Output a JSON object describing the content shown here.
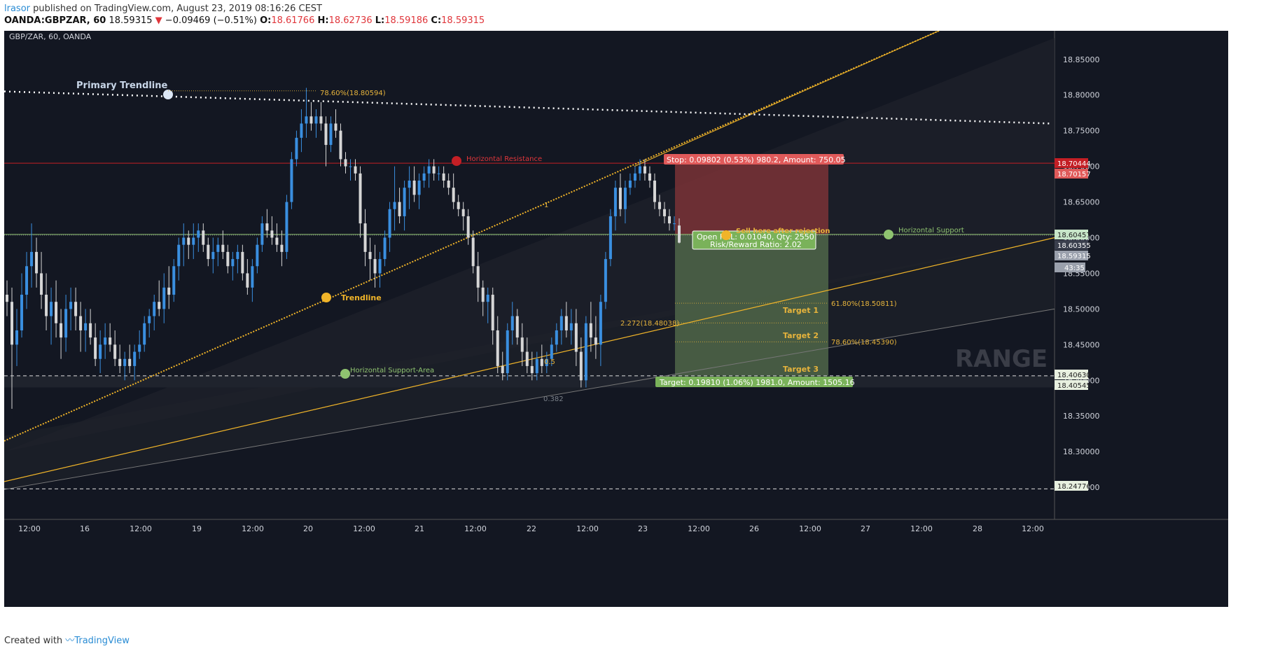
{
  "header": {
    "author": "lrasor",
    "published_text": "published on TradingView.com, August 23, 2019 08:16:26 CEST",
    "symbol": "OANDA:GBPZAR, 60",
    "last": "18.59315",
    "change": "−0.09469 (−0.51%)",
    "o_label": "O:",
    "o_val": "18.61766",
    "h_label": "H:",
    "h_val": "18.62736",
    "l_label": "L:",
    "l_val": "18.59186",
    "c_label": "C:",
    "c_val": "18.59315"
  },
  "footer": {
    "created_with": "Created with",
    "brand": "TradingView"
  },
  "chart_data": {
    "type": "candlestick",
    "title": "GBP/ZAR, 60, OANDA",
    "watermark": "RANGE",
    "ylim": [
      18.205,
      18.89
    ],
    "x_ticks": [
      "12:00",
      "16",
      "12:00",
      "19",
      "12:00",
      "20",
      "12:00",
      "21",
      "12:00",
      "22",
      "12:00",
      "23",
      "12:00",
      "26",
      "12:00",
      "27",
      "12:00",
      "28",
      "12:00"
    ],
    "y_ticks": [
      "18.85000",
      "18.80000",
      "18.75000",
      "18.70000",
      "18.65000",
      "18.60000",
      "18.55000",
      "18.50000",
      "18.45000",
      "18.40000",
      "18.35000",
      "18.30000",
      "18.25000"
    ],
    "price_badges": [
      {
        "value": "18.70444",
        "color": "#c41f25"
      },
      {
        "value": "18.70157",
        "color": "#e05a5a"
      },
      {
        "value": "18.60457",
        "color": "#c8e6c9"
      },
      {
        "value": "18.60355",
        "color": "#3a3f4d"
      },
      {
        "value": "18.59315",
        "color": "#9aa0ac"
      },
      {
        "value": "43:35",
        "color": "#9aa0ac"
      },
      {
        "value": "18.40630",
        "color": "#e8f0e0"
      },
      {
        "value": "18.40545",
        "color": "#e8f0e0"
      },
      {
        "value": "18.24776",
        "color": "#e8f0e0"
      }
    ],
    "candles": [
      [
        18.52,
        18.54,
        18.49,
        18.51
      ],
      [
        18.51,
        18.53,
        18.36,
        18.45
      ],
      [
        18.45,
        18.5,
        18.42,
        18.47
      ],
      [
        18.47,
        18.55,
        18.46,
        18.52
      ],
      [
        18.52,
        18.58,
        18.5,
        18.56
      ],
      [
        18.56,
        18.62,
        18.53,
        18.58
      ],
      [
        18.58,
        18.6,
        18.53,
        18.55
      ],
      [
        18.55,
        18.58,
        18.5,
        18.52
      ],
      [
        18.52,
        18.55,
        18.47,
        18.49
      ],
      [
        18.49,
        18.53,
        18.45,
        18.51
      ],
      [
        18.51,
        18.54,
        18.46,
        18.48
      ],
      [
        18.48,
        18.5,
        18.43,
        18.46
      ],
      [
        18.46,
        18.52,
        18.44,
        18.5
      ],
      [
        18.5,
        18.53,
        18.47,
        18.51
      ],
      [
        18.51,
        18.53,
        18.47,
        18.49
      ],
      [
        18.49,
        18.51,
        18.44,
        18.47
      ],
      [
        18.47,
        18.5,
        18.44,
        18.48
      ],
      [
        18.48,
        18.5,
        18.45,
        18.46
      ],
      [
        18.46,
        18.48,
        18.42,
        18.43
      ],
      [
        18.43,
        18.47,
        18.41,
        18.45
      ],
      [
        18.45,
        18.48,
        18.43,
        18.46
      ],
      [
        18.46,
        18.48,
        18.44,
        18.45
      ],
      [
        18.45,
        18.47,
        18.42,
        18.43
      ],
      [
        18.43,
        18.45,
        18.41,
        18.42
      ],
      [
        18.42,
        18.44,
        18.4,
        18.43
      ],
      [
        18.43,
        18.45,
        18.41,
        18.42
      ],
      [
        18.42,
        18.45,
        18.4,
        18.44
      ],
      [
        18.44,
        18.47,
        18.43,
        18.45
      ],
      [
        18.45,
        18.49,
        18.44,
        18.48
      ],
      [
        18.48,
        18.5,
        18.46,
        18.49
      ],
      [
        18.49,
        18.52,
        18.47,
        18.51
      ],
      [
        18.51,
        18.54,
        18.49,
        18.5
      ],
      [
        18.5,
        18.55,
        18.48,
        18.53
      ],
      [
        18.53,
        18.56,
        18.5,
        18.52
      ],
      [
        18.52,
        18.57,
        18.51,
        18.56
      ],
      [
        18.56,
        18.6,
        18.54,
        18.59
      ],
      [
        18.59,
        18.62,
        18.56,
        18.6
      ],
      [
        18.6,
        18.61,
        18.57,
        18.59
      ],
      [
        18.59,
        18.62,
        18.57,
        18.6
      ],
      [
        18.6,
        18.62,
        18.58,
        18.61
      ],
      [
        18.61,
        18.62,
        18.58,
        18.59
      ],
      [
        18.59,
        18.6,
        18.56,
        18.57
      ],
      [
        18.57,
        18.6,
        18.55,
        18.58
      ],
      [
        18.58,
        18.6,
        18.56,
        18.59
      ],
      [
        18.59,
        18.61,
        18.57,
        18.58
      ],
      [
        18.58,
        18.59,
        18.55,
        18.56
      ],
      [
        18.56,
        18.58,
        18.54,
        18.57
      ],
      [
        18.57,
        18.59,
        18.55,
        18.58
      ],
      [
        18.58,
        18.59,
        18.54,
        18.55
      ],
      [
        18.55,
        18.57,
        18.52,
        18.53
      ],
      [
        18.53,
        18.57,
        18.51,
        18.56
      ],
      [
        18.56,
        18.6,
        18.55,
        18.59
      ],
      [
        18.59,
        18.63,
        18.58,
        18.62
      ],
      [
        18.62,
        18.64,
        18.6,
        18.61
      ],
      [
        18.61,
        18.63,
        18.59,
        18.6
      ],
      [
        18.6,
        18.62,
        18.58,
        18.59
      ],
      [
        18.59,
        18.61,
        18.56,
        18.58
      ],
      [
        18.58,
        18.66,
        18.57,
        18.65
      ],
      [
        18.65,
        18.72,
        18.64,
        18.71
      ],
      [
        18.71,
        18.75,
        18.7,
        18.74
      ],
      [
        18.74,
        18.78,
        18.72,
        18.76
      ],
      [
        18.76,
        18.81,
        18.74,
        18.77
      ],
      [
        18.77,
        18.79,
        18.75,
        18.76
      ],
      [
        18.76,
        18.78,
        18.74,
        18.77
      ],
      [
        18.77,
        18.79,
        18.75,
        18.76
      ],
      [
        18.76,
        18.77,
        18.7,
        18.73
      ],
      [
        18.73,
        18.77,
        18.72,
        18.76
      ],
      [
        18.76,
        18.78,
        18.74,
        18.75
      ],
      [
        18.75,
        18.76,
        18.7,
        18.71
      ],
      [
        18.71,
        18.72,
        18.69,
        18.7
      ],
      [
        18.7,
        18.71,
        18.68,
        18.7
      ],
      [
        18.7,
        18.71,
        18.68,
        18.69
      ],
      [
        18.69,
        18.7,
        18.6,
        18.62
      ],
      [
        18.62,
        18.64,
        18.56,
        18.58
      ],
      [
        18.58,
        18.6,
        18.54,
        18.57
      ],
      [
        18.57,
        18.59,
        18.53,
        18.55
      ],
      [
        18.55,
        18.58,
        18.53,
        18.57
      ],
      [
        18.57,
        18.61,
        18.56,
        18.6
      ],
      [
        18.6,
        18.65,
        18.58,
        18.64
      ],
      [
        18.64,
        18.7,
        18.61,
        18.65
      ],
      [
        18.65,
        18.67,
        18.62,
        18.63
      ],
      [
        18.63,
        18.68,
        18.61,
        18.67
      ],
      [
        18.67,
        18.7,
        18.64,
        18.68
      ],
      [
        18.68,
        18.7,
        18.65,
        18.66
      ],
      [
        18.66,
        18.69,
        18.64,
        18.68
      ],
      [
        18.68,
        18.7,
        18.67,
        18.69
      ],
      [
        18.69,
        18.71,
        18.67,
        18.7
      ],
      [
        18.7,
        18.71,
        18.68,
        18.69
      ],
      [
        18.69,
        18.7,
        18.68,
        18.69
      ],
      [
        18.69,
        18.7,
        18.67,
        18.68
      ],
      [
        18.68,
        18.69,
        18.66,
        18.67
      ],
      [
        18.67,
        18.69,
        18.64,
        18.65
      ],
      [
        18.65,
        18.66,
        18.63,
        18.64
      ],
      [
        18.64,
        18.65,
        18.61,
        18.63
      ],
      [
        18.63,
        18.64,
        18.59,
        18.6
      ],
      [
        18.6,
        18.61,
        18.55,
        18.56
      ],
      [
        18.56,
        18.58,
        18.51,
        18.53
      ],
      [
        18.53,
        18.54,
        18.49,
        18.51
      ],
      [
        18.51,
        18.53,
        18.48,
        18.52
      ],
      [
        18.52,
        18.53,
        18.45,
        18.47
      ],
      [
        18.47,
        18.49,
        18.41,
        18.42
      ],
      [
        18.42,
        18.44,
        18.4,
        18.41
      ],
      [
        18.41,
        18.48,
        18.4,
        18.47
      ],
      [
        18.47,
        18.51,
        18.45,
        18.49
      ],
      [
        18.49,
        18.5,
        18.45,
        18.46
      ],
      [
        18.46,
        18.48,
        18.42,
        18.44
      ],
      [
        18.44,
        18.46,
        18.41,
        18.42
      ],
      [
        18.42,
        18.44,
        18.4,
        18.41
      ],
      [
        18.41,
        18.44,
        18.4,
        18.43
      ],
      [
        18.43,
        18.45,
        18.41,
        18.42
      ],
      [
        18.42,
        18.44,
        18.41,
        18.43
      ],
      [
        18.43,
        18.46,
        18.42,
        18.45
      ],
      [
        18.45,
        18.48,
        18.44,
        18.47
      ],
      [
        18.47,
        18.5,
        18.45,
        18.49
      ],
      [
        18.49,
        18.51,
        18.46,
        18.47
      ],
      [
        18.47,
        18.5,
        18.45,
        18.48
      ],
      [
        18.48,
        18.5,
        18.42,
        18.44
      ],
      [
        18.44,
        18.46,
        18.39,
        18.4
      ],
      [
        18.4,
        18.49,
        18.39,
        18.48
      ],
      [
        18.48,
        18.51,
        18.44,
        18.46
      ],
      [
        18.46,
        18.49,
        18.43,
        18.45
      ],
      [
        18.45,
        18.52,
        18.42,
        18.51
      ],
      [
        18.51,
        18.58,
        18.5,
        18.57
      ],
      [
        18.57,
        18.64,
        18.56,
        18.63
      ],
      [
        18.63,
        18.68,
        18.61,
        18.67
      ],
      [
        18.67,
        18.69,
        18.63,
        18.64
      ],
      [
        18.64,
        18.68,
        18.62,
        18.67
      ],
      [
        18.67,
        18.69,
        18.66,
        18.68
      ],
      [
        18.68,
        18.7,
        18.67,
        18.69
      ],
      [
        18.69,
        18.71,
        18.68,
        18.7
      ],
      [
        18.7,
        18.71,
        18.68,
        18.69
      ],
      [
        18.69,
        18.7,
        18.67,
        18.68
      ],
      [
        18.68,
        18.69,
        18.64,
        18.65
      ],
      [
        18.65,
        18.66,
        18.63,
        18.64
      ],
      [
        18.64,
        18.65,
        18.62,
        18.63
      ],
      [
        18.63,
        18.64,
        18.61,
        18.62
      ],
      [
        18.62,
        18.63,
        18.61,
        18.62
      ],
      [
        18.617,
        18.627,
        18.592,
        18.593
      ]
    ],
    "annotations": {
      "primary_trendline": "Primary Trendline",
      "fib_top": "78.60%(18.80594)",
      "horizontal_resistance": "Horizontal Resistance",
      "horizontal_support": "Horizontal Support",
      "horizontal_support_area": "Horizontal Support-Area",
      "trendline": "Trendline",
      "fib_1": "1",
      "fib_05": "0.5",
      "fib_0382": "0.382",
      "fib_2272": "2.272(18.48038)",
      "fib_618": "61.80%(18.50811)",
      "fib_786": "78.60%(18.45390)",
      "target1": "Target 1",
      "target2": "Target 2",
      "target3": "Target 3",
      "sell_note": "Sell here after rejection",
      "stop_box": "Stop: 0.09802 (0.53%) 980.2, Amount: 750.05",
      "open_box_1": "Open P&L: 0.01040, Qty: 2550",
      "open_box_2": "Risk/Reward Ratio: 2.02",
      "target_box": "Target: 0.19810 (1.06%) 1981.0, Amount: 1505.16"
    },
    "levels": {
      "resistance": 18.70444,
      "support": 18.60457,
      "support_dotted": 18.60355,
      "support_area_top": 18.4063,
      "support_area_bottom": 18.39,
      "lower_dashed": 18.24776,
      "entry": 18.60457,
      "stop": 18.70444,
      "target": 18.4063
    },
    "colors": {
      "bull": "#3a8fe0",
      "bear": "#d6d6d6",
      "resistance": "#c41f25",
      "support": "#8fc370",
      "trend": "#f0b429",
      "stop_zone": "#7a3236",
      "profit_zone": "#4d6247"
    }
  }
}
